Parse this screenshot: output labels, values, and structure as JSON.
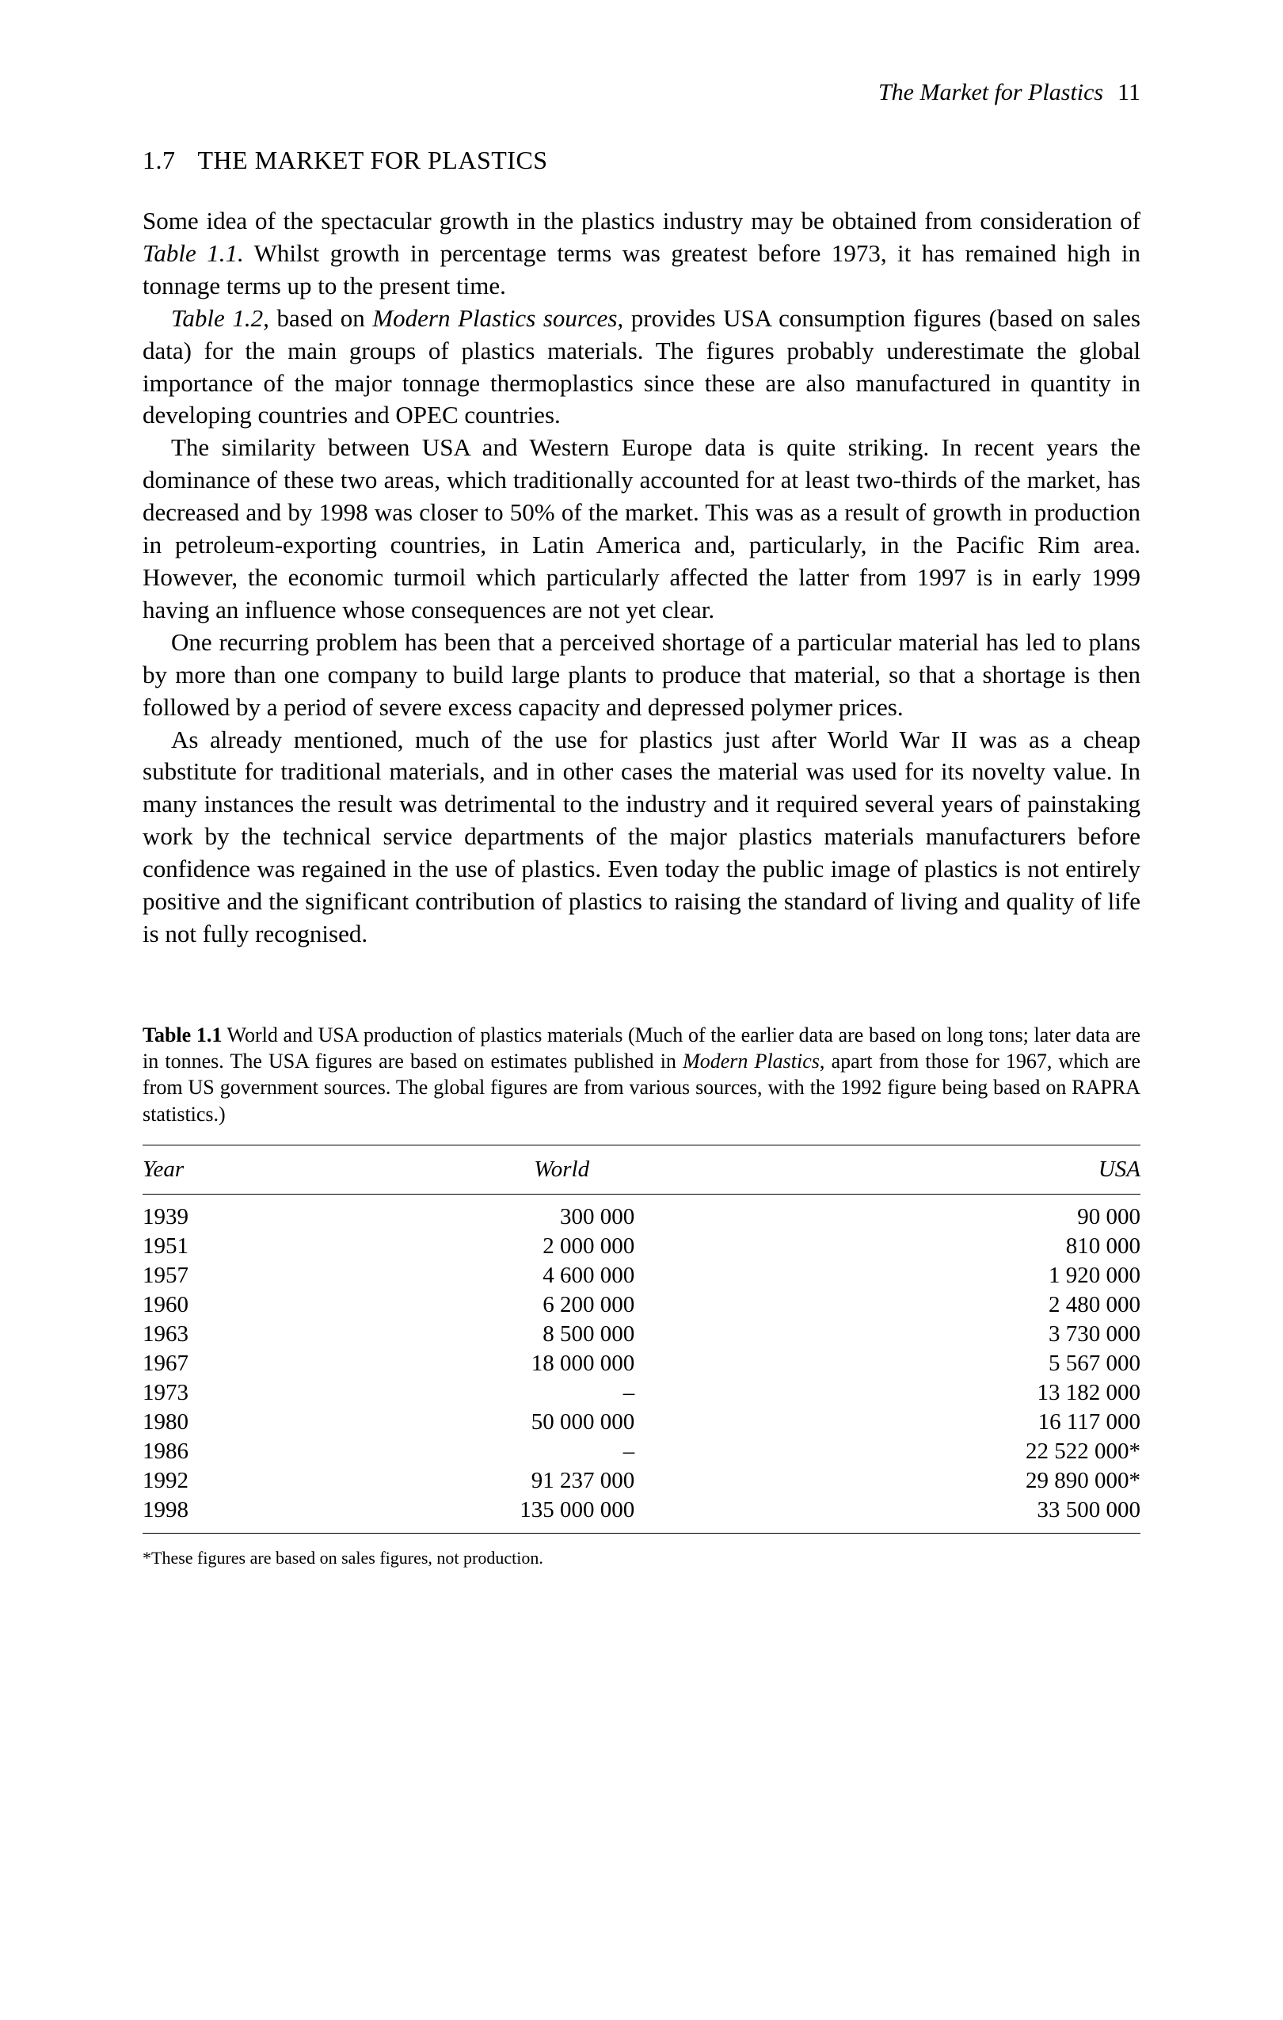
{
  "header": {
    "running_title": "The Market for Plastics",
    "page_number": "11"
  },
  "section": {
    "number": "1.7",
    "title": "THE MARKET FOR PLASTICS"
  },
  "paragraphs": {
    "p1_a": "Some idea of the spectacular growth in the plastics industry may be obtained from consideration of ",
    "p1_ref": "Table 1.1.",
    "p1_b": " Whilst growth in percentage terms was greatest before 1973, it has remained high in tonnage terms up to the present time.",
    "p2_ref": "Table 1.2,",
    "p2_a": " based on ",
    "p2_src": "Modern Plastics sources,",
    "p2_b": " provides USA consumption figures (based on sales data) for the main groups of plastics materials. The figures probably underestimate the global importance of the major tonnage thermoplastics since these are also manufactured in quantity in developing countries and OPEC countries.",
    "p3": "The similarity between USA and Western Europe data is quite striking. In recent years the dominance of these two areas, which traditionally accounted for at least two-thirds of the market, has decreased and by 1998 was closer to 50% of the market. This was as a result of growth in production in petroleum-exporting countries, in Latin America and, particularly, in the Pacific Rim area. However, the economic turmoil which particularly affected the latter from 1997 is in early 1999 having an influence whose consequences are not yet clear.",
    "p4": "One recurring problem has been that a perceived shortage of a particular material has led to plans by more than one company to build large plants to produce that material, so that a shortage is then followed by a period of severe excess capacity and depressed polymer prices.",
    "p5": "As already mentioned, much of the use for plastics just after World War II was as a cheap substitute for traditional materials, and in other cases the material was used for its novelty value. In many instances the result was detrimental to the industry and it required several years of painstaking work by the technical service departments of the major plastics materials manufacturers before confidence was regained in the use of plastics. Even today the public image of plastics is not entirely positive and the significant contribution of plastics to raising the standard of living and quality of life is not fully recognised."
  },
  "table": {
    "label": "Table 1.1",
    "caption_a": " World and USA production of plastics materials (Much of the earlier data are based on long tons; later data are in tonnes. The USA figures are based on estimates published in ",
    "caption_src": "Modern Plastics",
    "caption_b": ", apart from those for 1967, which are from US government sources. The global figures are from various sources, with the 1992 figure being based on RAPRA statistics.)",
    "columns": [
      "Year",
      "World",
      "USA"
    ],
    "rows": [
      [
        "1939",
        "300 000",
        "90 000"
      ],
      [
        "1951",
        "2 000 000",
        "810 000"
      ],
      [
        "1957",
        "4 600 000",
        "1 920 000"
      ],
      [
        "1960",
        "6 200 000",
        "2 480 000"
      ],
      [
        "1963",
        "8 500 000",
        "3 730 000"
      ],
      [
        "1967",
        "18 000 000",
        "5 567 000"
      ],
      [
        "1973",
        "–",
        "13 182 000"
      ],
      [
        "1980",
        "50 000 000",
        "16 117 000"
      ],
      [
        "1986",
        "–",
        "22 522 000*"
      ],
      [
        "1992",
        "91 237 000",
        "29 890 000*"
      ],
      [
        "1998",
        "135 000 000",
        "33 500 000"
      ]
    ],
    "footnote": "*These figures are based on sales figures, not production."
  }
}
